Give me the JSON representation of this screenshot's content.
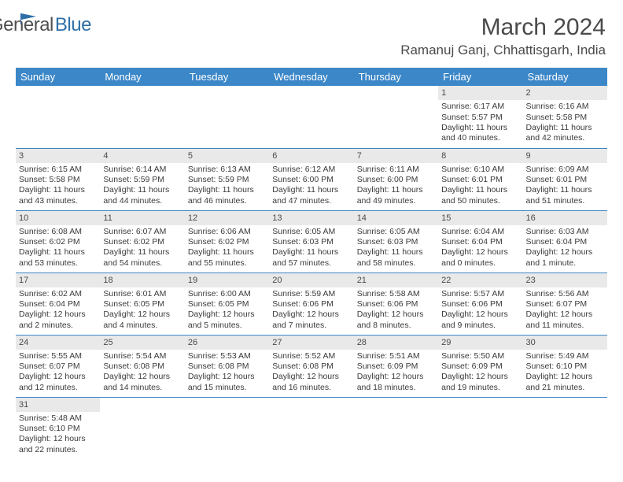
{
  "logo": {
    "general": "General",
    "blue": "Blue"
  },
  "title": "March 2024",
  "location": "Ramanuj Ganj, Chhattisgarh, India",
  "colors": {
    "header_bg": "#3b87c8",
    "header_text": "#ffffff",
    "daynum_bg": "#e9e9e9",
    "border": "#3b87c8",
    "logo_blue": "#2f6fa8",
    "text": "#3a3a3a"
  },
  "weekdays": [
    "Sunday",
    "Monday",
    "Tuesday",
    "Wednesday",
    "Thursday",
    "Friday",
    "Saturday"
  ],
  "weeks": [
    [
      null,
      null,
      null,
      null,
      null,
      {
        "n": "1",
        "sr": "Sunrise: 6:17 AM",
        "ss": "Sunset: 5:57 PM",
        "dl": "Daylight: 11 hours and 40 minutes."
      },
      {
        "n": "2",
        "sr": "Sunrise: 6:16 AM",
        "ss": "Sunset: 5:58 PM",
        "dl": "Daylight: 11 hours and 42 minutes."
      }
    ],
    [
      {
        "n": "3",
        "sr": "Sunrise: 6:15 AM",
        "ss": "Sunset: 5:58 PM",
        "dl": "Daylight: 11 hours and 43 minutes."
      },
      {
        "n": "4",
        "sr": "Sunrise: 6:14 AM",
        "ss": "Sunset: 5:59 PM",
        "dl": "Daylight: 11 hours and 44 minutes."
      },
      {
        "n": "5",
        "sr": "Sunrise: 6:13 AM",
        "ss": "Sunset: 5:59 PM",
        "dl": "Daylight: 11 hours and 46 minutes."
      },
      {
        "n": "6",
        "sr": "Sunrise: 6:12 AM",
        "ss": "Sunset: 6:00 PM",
        "dl": "Daylight: 11 hours and 47 minutes."
      },
      {
        "n": "7",
        "sr": "Sunrise: 6:11 AM",
        "ss": "Sunset: 6:00 PM",
        "dl": "Daylight: 11 hours and 49 minutes."
      },
      {
        "n": "8",
        "sr": "Sunrise: 6:10 AM",
        "ss": "Sunset: 6:01 PM",
        "dl": "Daylight: 11 hours and 50 minutes."
      },
      {
        "n": "9",
        "sr": "Sunrise: 6:09 AM",
        "ss": "Sunset: 6:01 PM",
        "dl": "Daylight: 11 hours and 51 minutes."
      }
    ],
    [
      {
        "n": "10",
        "sr": "Sunrise: 6:08 AM",
        "ss": "Sunset: 6:02 PM",
        "dl": "Daylight: 11 hours and 53 minutes."
      },
      {
        "n": "11",
        "sr": "Sunrise: 6:07 AM",
        "ss": "Sunset: 6:02 PM",
        "dl": "Daylight: 11 hours and 54 minutes."
      },
      {
        "n": "12",
        "sr": "Sunrise: 6:06 AM",
        "ss": "Sunset: 6:02 PM",
        "dl": "Daylight: 11 hours and 55 minutes."
      },
      {
        "n": "13",
        "sr": "Sunrise: 6:05 AM",
        "ss": "Sunset: 6:03 PM",
        "dl": "Daylight: 11 hours and 57 minutes."
      },
      {
        "n": "14",
        "sr": "Sunrise: 6:05 AM",
        "ss": "Sunset: 6:03 PM",
        "dl": "Daylight: 11 hours and 58 minutes."
      },
      {
        "n": "15",
        "sr": "Sunrise: 6:04 AM",
        "ss": "Sunset: 6:04 PM",
        "dl": "Daylight: 12 hours and 0 minutes."
      },
      {
        "n": "16",
        "sr": "Sunrise: 6:03 AM",
        "ss": "Sunset: 6:04 PM",
        "dl": "Daylight: 12 hours and 1 minute."
      }
    ],
    [
      {
        "n": "17",
        "sr": "Sunrise: 6:02 AM",
        "ss": "Sunset: 6:04 PM",
        "dl": "Daylight: 12 hours and 2 minutes."
      },
      {
        "n": "18",
        "sr": "Sunrise: 6:01 AM",
        "ss": "Sunset: 6:05 PM",
        "dl": "Daylight: 12 hours and 4 minutes."
      },
      {
        "n": "19",
        "sr": "Sunrise: 6:00 AM",
        "ss": "Sunset: 6:05 PM",
        "dl": "Daylight: 12 hours and 5 minutes."
      },
      {
        "n": "20",
        "sr": "Sunrise: 5:59 AM",
        "ss": "Sunset: 6:06 PM",
        "dl": "Daylight: 12 hours and 7 minutes."
      },
      {
        "n": "21",
        "sr": "Sunrise: 5:58 AM",
        "ss": "Sunset: 6:06 PM",
        "dl": "Daylight: 12 hours and 8 minutes."
      },
      {
        "n": "22",
        "sr": "Sunrise: 5:57 AM",
        "ss": "Sunset: 6:06 PM",
        "dl": "Daylight: 12 hours and 9 minutes."
      },
      {
        "n": "23",
        "sr": "Sunrise: 5:56 AM",
        "ss": "Sunset: 6:07 PM",
        "dl": "Daylight: 12 hours and 11 minutes."
      }
    ],
    [
      {
        "n": "24",
        "sr": "Sunrise: 5:55 AM",
        "ss": "Sunset: 6:07 PM",
        "dl": "Daylight: 12 hours and 12 minutes."
      },
      {
        "n": "25",
        "sr": "Sunrise: 5:54 AM",
        "ss": "Sunset: 6:08 PM",
        "dl": "Daylight: 12 hours and 14 minutes."
      },
      {
        "n": "26",
        "sr": "Sunrise: 5:53 AM",
        "ss": "Sunset: 6:08 PM",
        "dl": "Daylight: 12 hours and 15 minutes."
      },
      {
        "n": "27",
        "sr": "Sunrise: 5:52 AM",
        "ss": "Sunset: 6:08 PM",
        "dl": "Daylight: 12 hours and 16 minutes."
      },
      {
        "n": "28",
        "sr": "Sunrise: 5:51 AM",
        "ss": "Sunset: 6:09 PM",
        "dl": "Daylight: 12 hours and 18 minutes."
      },
      {
        "n": "29",
        "sr": "Sunrise: 5:50 AM",
        "ss": "Sunset: 6:09 PM",
        "dl": "Daylight: 12 hours and 19 minutes."
      },
      {
        "n": "30",
        "sr": "Sunrise: 5:49 AM",
        "ss": "Sunset: 6:10 PM",
        "dl": "Daylight: 12 hours and 21 minutes."
      }
    ],
    [
      {
        "n": "31",
        "sr": "Sunrise: 5:48 AM",
        "ss": "Sunset: 6:10 PM",
        "dl": "Daylight: 12 hours and 22 minutes."
      },
      null,
      null,
      null,
      null,
      null,
      null
    ]
  ]
}
